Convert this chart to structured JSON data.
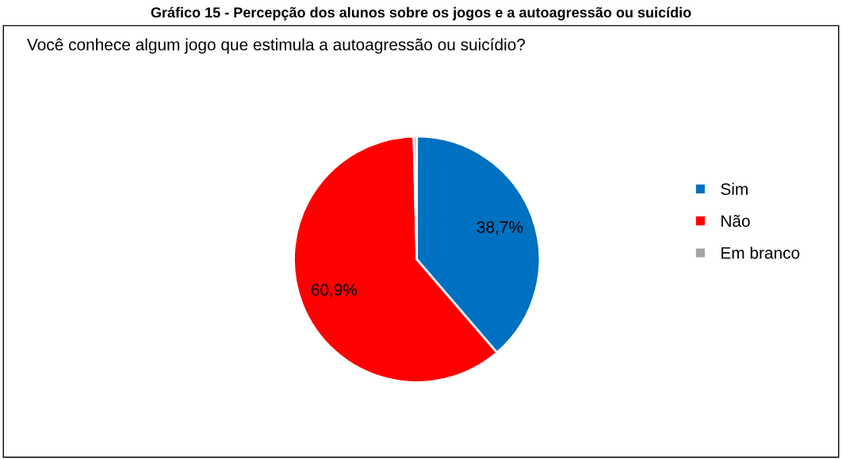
{
  "chart_data": {
    "type": "pie",
    "title": "Gráfico 15 - Percepção dos alunos sobre os jogos e a autoagressão ou suicídio",
    "subtitle": "Você conhece algum jogo que estimula a autoagressão ou suicídio?",
    "categories": [
      "Sim",
      "Não",
      "Em branco"
    ],
    "values": [
      38.7,
      60.9,
      0.4
    ],
    "value_labels": [
      "38,7%",
      "60,9%",
      null
    ],
    "colors": [
      "#0070c0",
      "#ff0000",
      "#a5a5a5"
    ],
    "legend": "right"
  }
}
